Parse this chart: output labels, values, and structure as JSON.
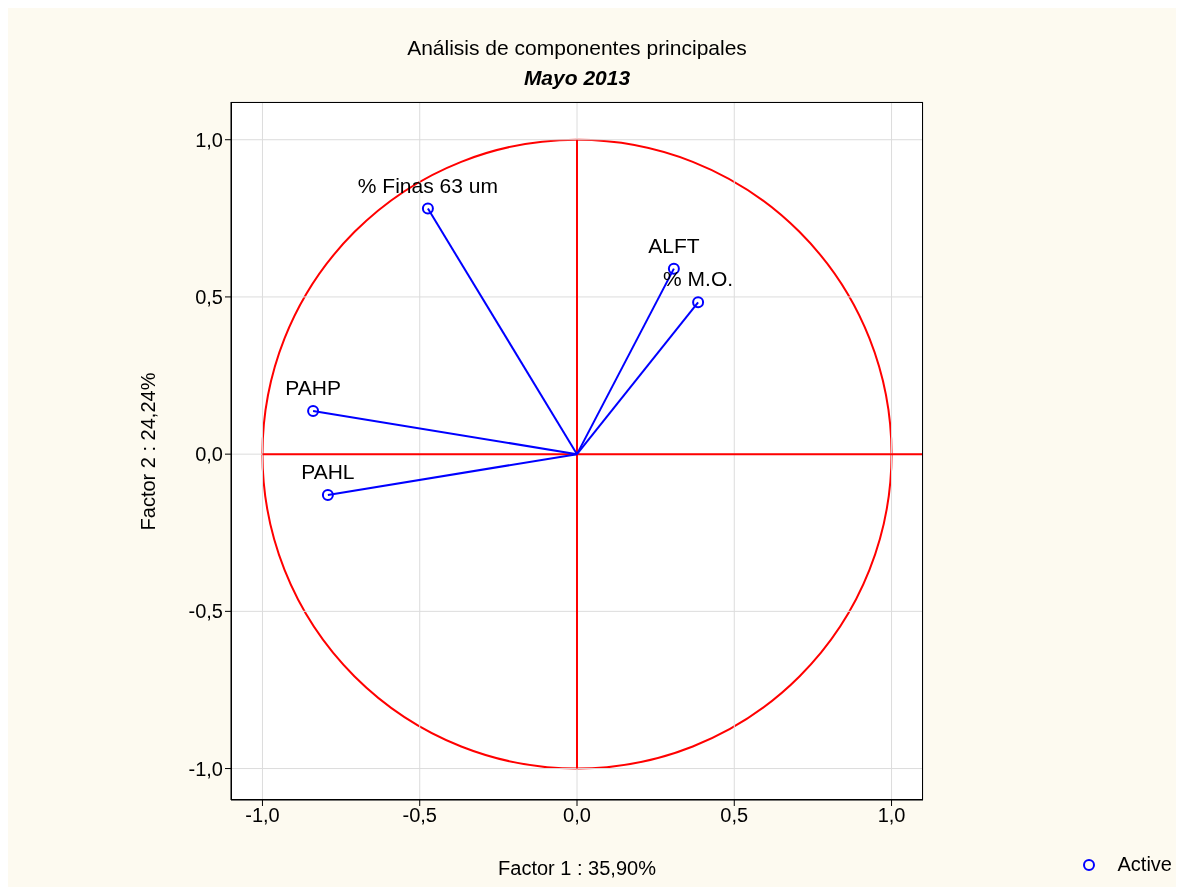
{
  "chart_data": {
    "type": "scatter",
    "title": "Análisis de componentes principales",
    "subtitle": "Mayo 2013",
    "xlabel": "Factor 1 : 35,90%",
    "ylabel": "Factor 2 : 24,24%",
    "xlim": [
      -1.1,
      1.1
    ],
    "ylim": [
      -1.1,
      1.12
    ],
    "xticks": [
      {
        "value": -1,
        "label": "-1,0"
      },
      {
        "value": -0.5,
        "label": "-0,5"
      },
      {
        "value": 0,
        "label": "0,0"
      },
      {
        "value": 0.5,
        "label": "0,5"
      },
      {
        "value": 1,
        "label": "1,0"
      }
    ],
    "yticks": [
      {
        "value": -1,
        "label": "-1,0"
      },
      {
        "value": -0.5,
        "label": "-0,5"
      },
      {
        "value": 0,
        "label": "0,0"
      },
      {
        "value": 0.5,
        "label": "0,5"
      },
      {
        "value": 1,
        "label": "1,0"
      }
    ],
    "grid": true,
    "legend": "bottom right",
    "series": [
      {
        "type": "line",
        "color": "#ff0000",
        "x": [
          -1,
          1.1
        ],
        "values": [
          0,
          0
        ]
      },
      {
        "type": "line",
        "color": "#ff0000",
        "x": [
          0,
          0
        ],
        "values": [
          -1,
          1
        ]
      },
      {
        "type": "line",
        "color": "#0000ff",
        "x": [
          0,
          -0.474
        ],
        "values": [
          0,
          0.781
        ]
      },
      {
        "type": "line",
        "color": "#0000ff",
        "x": [
          0,
          0.308
        ],
        "values": [
          0,
          0.59
        ]
      },
      {
        "type": "line",
        "color": "#0000ff",
        "x": [
          0,
          0.385
        ],
        "values": [
          0,
          0.483
        ]
      },
      {
        "type": "line",
        "color": "#0000ff",
        "x": [
          0,
          -0.839
        ],
        "values": [
          0,
          0.137
        ]
      },
      {
        "type": "line",
        "color": "#0000ff",
        "x": [
          0,
          -0.792
        ],
        "values": [
          0,
          -0.13
        ]
      },
      {
        "type": "scatter",
        "name": "Active",
        "color": "#0000ff",
        "marker": "circle",
        "x": [
          -0.474,
          0.308,
          0.385,
          -0.839,
          -0.792
        ],
        "values": [
          0.781,
          0.59,
          0.483,
          0.137,
          -0.13
        ]
      }
    ],
    "annotations": [
      {
        "text": "% Finas 63 um",
        "x": -0.474,
        "y": 0.781
      },
      {
        "text": "ALFT",
        "x": 0.308,
        "y": 0.59
      },
      {
        "text": "% M.O.",
        "x": 0.385,
        "y": 0.483
      },
      {
        "text": "PAHP",
        "x": -0.839,
        "y": 0.137
      },
      {
        "text": "PAHL",
        "x": -0.792,
        "y": -0.13
      }
    ]
  }
}
